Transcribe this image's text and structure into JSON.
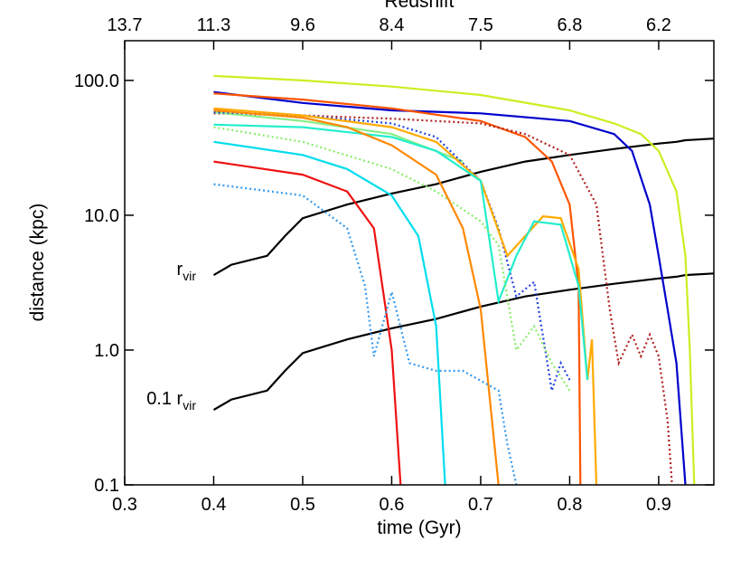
{
  "chart_data": {
    "type": "line",
    "x_label": "time (Gyr)",
    "y_label": "distance (kpc)",
    "top_label": "Redshift",
    "xlim": [
      0.3,
      0.962
    ],
    "xticks": [
      0.3,
      0.4,
      0.5,
      0.6,
      0.7,
      0.8,
      0.9
    ],
    "top_ticks": [
      {
        "value": 0.3,
        "label": "13.7"
      },
      {
        "value": 0.4,
        "label": "11.3"
      },
      {
        "value": 0.5,
        "label": "9.6"
      },
      {
        "value": 0.6,
        "label": "8.4"
      },
      {
        "value": 0.7,
        "label": "7.5"
      },
      {
        "value": 0.8,
        "label": "6.8"
      },
      {
        "value": 0.9,
        "label": "6.2"
      }
    ],
    "ylim": [
      0.1,
      197
    ],
    "log_y": true,
    "yticks": [
      0.1,
      {
        "value": 1,
        "label": "1.0"
      },
      {
        "value": 10,
        "label": "10.0"
      },
      {
        "value": 100,
        "label": "100.0"
      }
    ],
    "annotations": [
      {
        "text": "r",
        "sub": "vir"
      },
      {
        "text": "0.1 r",
        "sub": "vir"
      }
    ],
    "series": [
      {
        "color": "#000000",
        "dash": "solid",
        "x": [
          0.4,
          0.42,
          0.46,
          0.48,
          0.5,
          0.55,
          0.6,
          0.65,
          0.7,
          0.75,
          0.8,
          0.85,
          0.9,
          0.92,
          0.93,
          0.962
        ],
        "values": [
          3.6,
          4.3,
          5.0,
          7,
          9.5,
          12,
          14.5,
          17,
          21,
          25,
          28,
          31,
          34,
          35,
          36,
          37
        ]
      },
      {
        "color": "#000000",
        "dash": "solid",
        "x": [
          0.4,
          0.42,
          0.46,
          0.48,
          0.5,
          0.55,
          0.6,
          0.65,
          0.7,
          0.75,
          0.8,
          0.85,
          0.9,
          0.92,
          0.93,
          0.962
        ],
        "values": [
          0.36,
          0.43,
          0.5,
          0.7,
          0.95,
          1.2,
          1.45,
          1.7,
          2.1,
          2.5,
          2.8,
          3.1,
          3.4,
          3.5,
          3.6,
          3.7
        ]
      },
      {
        "color": "#ccee22",
        "dash": "solid",
        "x": [
          0.4,
          0.5,
          0.6,
          0.7,
          0.8,
          0.85,
          0.88,
          0.9,
          0.92,
          0.93,
          0.935,
          0.94
        ],
        "values": [
          108,
          100,
          90,
          78,
          60,
          48,
          40,
          30,
          15,
          5,
          1,
          0.1
        ]
      },
      {
        "color": "#0000cc",
        "dash": "solid",
        "x": [
          0.4,
          0.5,
          0.6,
          0.7,
          0.8,
          0.85,
          0.87,
          0.89,
          0.9,
          0.91,
          0.92,
          0.93
        ],
        "values": [
          82,
          68,
          60,
          57,
          50,
          40,
          30,
          12,
          5,
          2,
          0.8,
          0.1
        ]
      },
      {
        "color": "#ff5500",
        "dash": "solid",
        "x": [
          0.4,
          0.5,
          0.6,
          0.7,
          0.75,
          0.78,
          0.8,
          0.81,
          0.812
        ],
        "values": [
          80,
          72,
          62,
          50,
          38,
          25,
          12,
          3,
          0.1
        ]
      },
      {
        "color": "#b02020",
        "dash": "dotted",
        "x": [
          0.4,
          0.5,
          0.6,
          0.7,
          0.75,
          0.8,
          0.83,
          0.845,
          0.855,
          0.87,
          0.88,
          0.89,
          0.9,
          0.91,
          0.915
        ],
        "values": [
          57,
          55,
          52,
          48,
          40,
          28,
          12,
          2,
          0.8,
          1.3,
          0.9,
          1.3,
          0.9,
          0.3,
          0.1
        ]
      },
      {
        "color": "#88ee88",
        "dash": "solid",
        "x": [
          0.4,
          0.5,
          0.6,
          0.68
        ],
        "values": [
          58,
          50,
          40,
          25
        ]
      },
      {
        "color": "#2244dd",
        "dash": "dotted",
        "x": [
          0.4,
          0.5,
          0.6,
          0.65,
          0.7,
          0.72,
          0.74,
          0.76,
          0.78,
          0.79,
          0.8
        ],
        "values": [
          58,
          55,
          48,
          38,
          18,
          8,
          2.5,
          3.2,
          0.5,
          0.8,
          0.6
        ]
      },
      {
        "color": "#ffaa00",
        "dash": "solid",
        "x": [
          0.4,
          0.5,
          0.6,
          0.65,
          0.7,
          0.73,
          0.75,
          0.77,
          0.79,
          0.81,
          0.82,
          0.825,
          0.83
        ],
        "values": [
          62,
          55,
          45,
          35,
          18,
          5,
          7,
          9.8,
          9.5,
          4,
          0.6,
          1.2,
          0.1
        ]
      },
      {
        "color": "#22eecc",
        "dash": "solid",
        "x": [
          0.4,
          0.5,
          0.6,
          0.65,
          0.7,
          0.72,
          0.74,
          0.76,
          0.79,
          0.81,
          0.82
        ],
        "values": [
          47,
          45,
          38,
          30,
          18,
          2.3,
          5,
          9,
          8.5,
          3,
          0.6
        ]
      },
      {
        "color": "#88ee66",
        "dash": "dotted",
        "x": [
          0.4,
          0.5,
          0.6,
          0.65,
          0.7,
          0.72,
          0.74,
          0.76,
          0.78,
          0.8
        ],
        "values": [
          45,
          35,
          22,
          15,
          9,
          6,
          1,
          1.5,
          0.8,
          0.5
        ]
      },
      {
        "color": "#ff8800",
        "dash": "solid",
        "x": [
          0.4,
          0.5,
          0.55,
          0.6,
          0.65,
          0.68,
          0.7,
          0.72
        ],
        "values": [
          60,
          53,
          45,
          33,
          20,
          8,
          2,
          0.1
        ]
      },
      {
        "color": "#00ddee",
        "dash": "solid",
        "x": [
          0.4,
          0.5,
          0.55,
          0.6,
          0.63,
          0.65,
          0.66
        ],
        "values": [
          35,
          28,
          22,
          14,
          7,
          1.5,
          0.1
        ]
      },
      {
        "color": "#ee1111",
        "dash": "solid",
        "x": [
          0.4,
          0.5,
          0.55,
          0.58,
          0.6,
          0.61
        ],
        "values": [
          25,
          20,
          15,
          8,
          1,
          0.1
        ]
      },
      {
        "color": "#3399ee",
        "dash": "dotted",
        "x": [
          0.4,
          0.5,
          0.55,
          0.57,
          0.58,
          0.6,
          0.62,
          0.65,
          0.68,
          0.72,
          0.73,
          0.74
        ],
        "values": [
          17,
          14,
          8,
          3,
          0.9,
          2.7,
          0.8,
          0.7,
          0.7,
          0.5,
          0.2,
          0.1
        ]
      }
    ]
  }
}
